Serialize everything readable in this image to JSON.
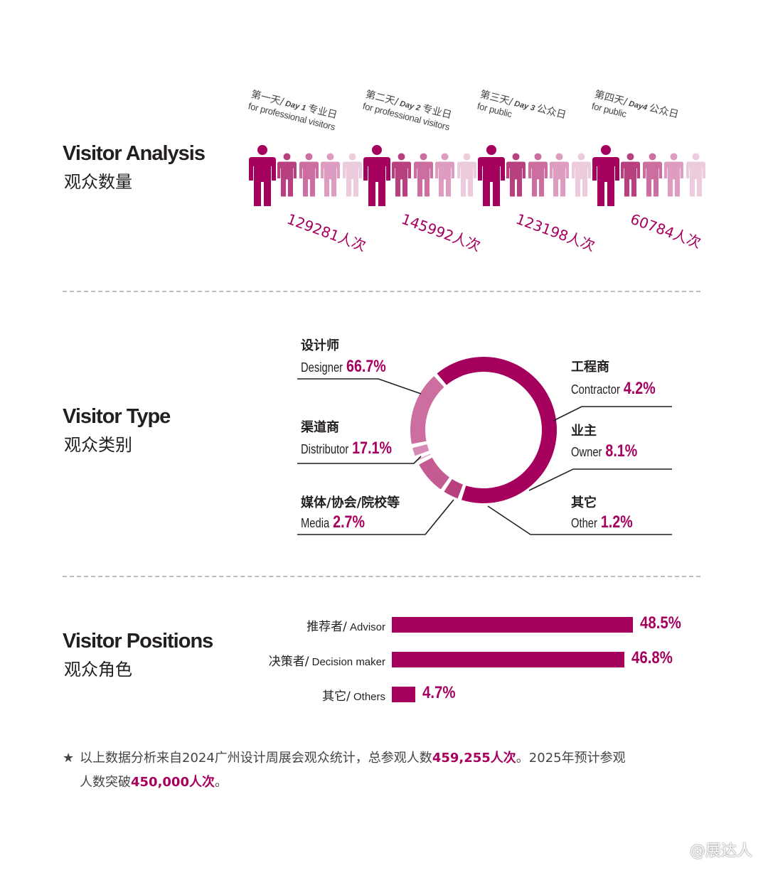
{
  "accent_color": "#a6005f",
  "figure_shades": [
    "#a6005f",
    "#b8407f",
    "#cc6fa0",
    "#dd9cc0",
    "#eccbdd"
  ],
  "sections": {
    "analysis": {
      "title_en": "Visitor Analysis",
      "title_cn": "观众数量"
    },
    "type": {
      "title_en": "Visitor Type",
      "title_cn": "观众类别"
    },
    "positions": {
      "title_en": "Visitor Positions",
      "title_cn": "观众角色"
    }
  },
  "days": [
    {
      "cn_prefix": "第一天/",
      "day_en": "Day 1",
      "cn_suffix": "专业日",
      "audience": "for professional visitors",
      "count": "129281人次"
    },
    {
      "cn_prefix": "第二天/",
      "day_en": "Day 2",
      "cn_suffix": "专业日",
      "audience": "for professional visitors",
      "count": "145992人次"
    },
    {
      "cn_prefix": "第三天/",
      "day_en": "Day 3",
      "cn_suffix": "公众日",
      "audience": "for public",
      "count": "123198人次"
    },
    {
      "cn_prefix": "第四天/",
      "day_en": "Day4",
      "cn_suffix": "公众日",
      "audience": "for public",
      "count": "60784人次"
    }
  ],
  "chart_data": [
    {
      "type": "bar",
      "categories": [
        "Day 1",
        "Day 2",
        "Day 3",
        "Day 4"
      ],
      "values": [
        129281,
        145992,
        123198,
        60784
      ],
      "unit": "人次"
    },
    {
      "type": "pie",
      "style": "donut",
      "slices": [
        {
          "label_cn": "设计师",
          "label_en": "Designer",
          "pct_text": "66.7%",
          "value": 66.7,
          "color": "#a6005f"
        },
        {
          "label_cn": "工程商",
          "label_en": "Contractor",
          "pct_text": "4.2%",
          "value": 4.2,
          "color": "#b8407f"
        },
        {
          "label_cn": "业主",
          "label_en": "Owner",
          "pct_text": "8.1%",
          "value": 8.1,
          "color": "#c45b93"
        },
        {
          "label_cn": "其它",
          "label_en": "Other",
          "pct_text": "1.2%",
          "value": 1.2,
          "color": "#e4aecd"
        },
        {
          "label_cn": "媒体/协会/院校等",
          "label_en": "Media",
          "pct_text": "2.7%",
          "value": 2.7,
          "color": "#d88ab6"
        },
        {
          "label_cn": "渠道商",
          "label_en": "Distributor",
          "pct_text": "17.1%",
          "value": 17.1,
          "color": "#cc6fa0"
        }
      ]
    },
    {
      "type": "bar",
      "orientation": "horizontal",
      "categories": [
        "推荐者/ Advisor",
        "决策者/ Decision maker",
        "其它/ Others"
      ],
      "values": [
        48.5,
        46.8,
        4.7
      ],
      "value_labels": [
        "48.5%",
        "46.8%",
        "4.7%"
      ],
      "color": "#a6005f"
    }
  ],
  "positions": [
    {
      "cn": "推荐者/",
      "en": "Advisor",
      "pct": "48.5%",
      "value": 48.5
    },
    {
      "cn": "决策者/",
      "en": "Decision maker",
      "pct": "46.8%",
      "value": 46.8
    },
    {
      "cn": "其它/",
      "en": "Others",
      "pct": "4.7%",
      "value": 4.7
    }
  ],
  "footnote": {
    "text1": "以上数据分析来自2024广州设计周展会观众统计，总参观人数",
    "hl1": "459,255人次",
    "text2": "。2025年预计参观",
    "text3": "人数突破",
    "hl2": "450,000人次",
    "text4": "。"
  },
  "watermark": "@展达人"
}
